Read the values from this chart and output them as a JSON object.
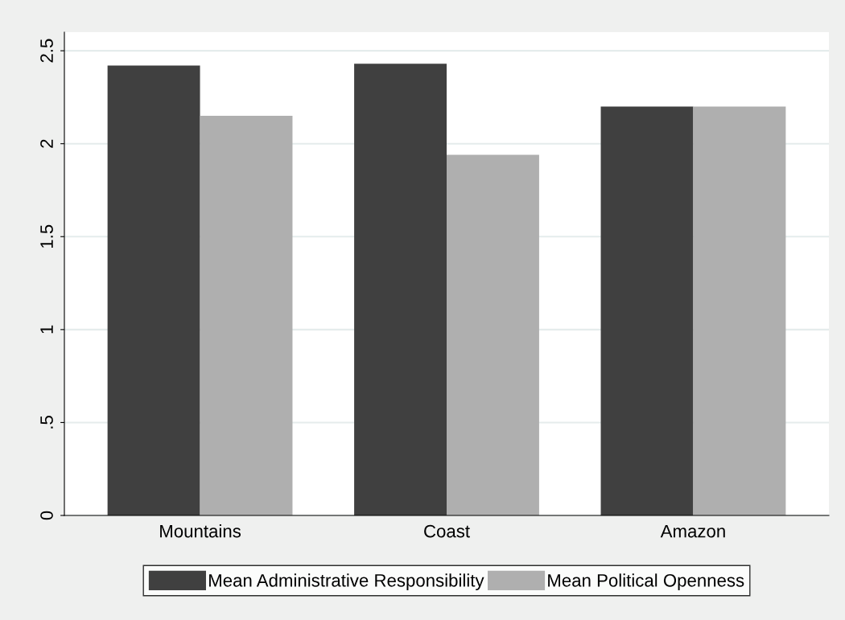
{
  "chart_data": {
    "type": "bar",
    "categories": [
      "Mountains",
      "Coast",
      "Amazon"
    ],
    "series": [
      {
        "name": "Mean Administrative Responsibility",
        "color": "#404040",
        "values": [
          2.42,
          2.43,
          2.2
        ]
      },
      {
        "name": "Mean Political Openness",
        "color": "#afafaf",
        "values": [
          2.15,
          1.94,
          2.2
        ]
      }
    ],
    "ylim": [
      0,
      2.6
    ],
    "yticks": [
      0,
      {
        "value": 0.5,
        "label": ".5"
      },
      1,
      1.5,
      2,
      2.5
    ],
    "grid": "y",
    "legend": "bottom"
  }
}
